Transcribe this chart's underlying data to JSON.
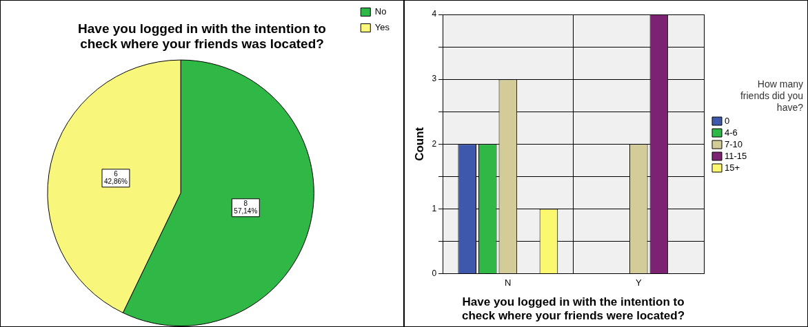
{
  "chart_data": [
    {
      "type": "pie",
      "title": "Have you logged in with the intention to check where your friends was located?",
      "categories": [
        "No",
        "Yes"
      ],
      "values": [
        8,
        6
      ],
      "colors": [
        "#2fb846",
        "#f9f67c"
      ],
      "value_labels": [
        "8\n57,14%",
        "6\n42,86%"
      ],
      "legend": "top right"
    },
    {
      "type": "bar",
      "categories": [
        "N",
        "Y"
      ],
      "xlabel": "Have you logged in with the intention to check where your friends were located?",
      "ylabel": "Count",
      "legend_title": "How many friends did you have?",
      "legend": "right",
      "series": [
        {
          "name": "0",
          "color": "#3e58ac",
          "values": [
            2,
            null
          ]
        },
        {
          "name": "4-6",
          "color": "#2fb846",
          "values": [
            2,
            null
          ]
        },
        {
          "name": "7-10",
          "color": "#d4cc98",
          "values": [
            3,
            2
          ]
        },
        {
          "name": "11-15",
          "color": "#7b2272",
          "values": [
            null,
            4
          ]
        },
        {
          "name": "15+",
          "color": "#fbf870",
          "values": [
            1,
            null
          ]
        }
      ],
      "ylim": [
        0,
        4
      ],
      "yticks": [
        0,
        {
          "value": 0.5,
          "label": null
        },
        1,
        {
          "value": 1.5,
          "label": null
        },
        2,
        {
          "value": 2.5,
          "label": null
        },
        3,
        {
          "value": 3.5,
          "label": null
        },
        4
      ],
      "grid": true
    }
  ]
}
